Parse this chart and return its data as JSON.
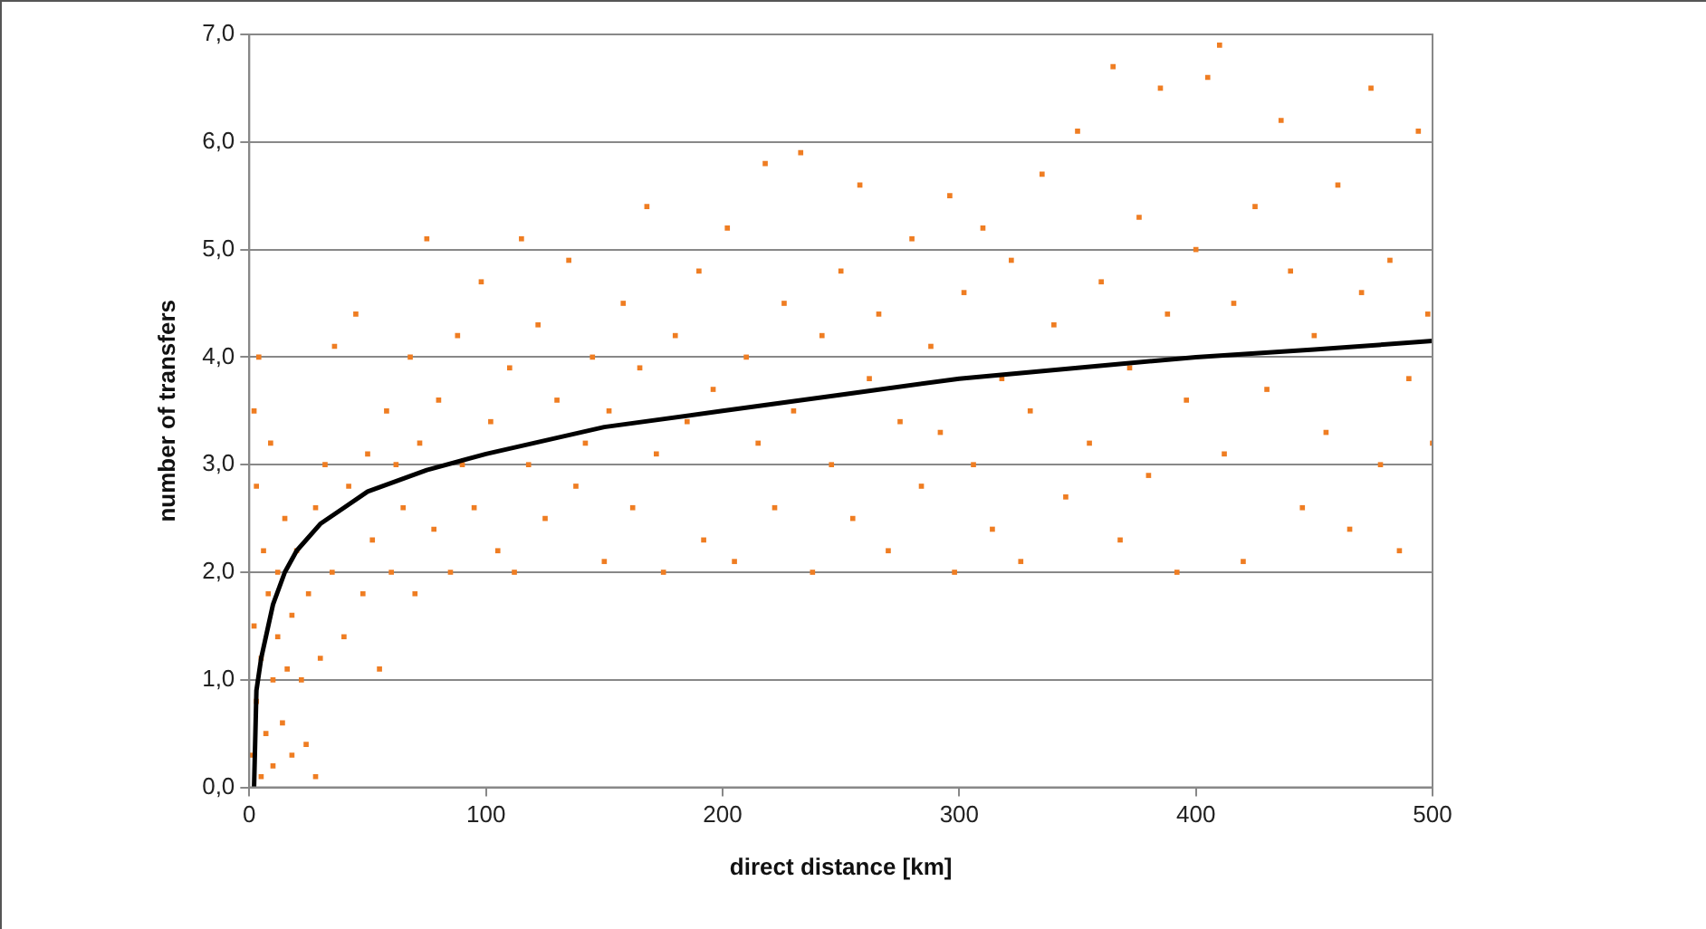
{
  "chart_data": {
    "type": "scatter",
    "xlabel": "direct distance [km]",
    "ylabel": "number of transfers",
    "xlim": [
      0,
      500
    ],
    "xticks": [
      0,
      100,
      200,
      300,
      400,
      500
    ],
    "ylim": [
      0,
      7
    ],
    "yticks": [
      {
        "value": 0,
        "label": "0,0"
      },
      {
        "value": 1,
        "label": "1,0"
      },
      {
        "value": 2,
        "label": "2,0"
      },
      {
        "value": 3,
        "label": "3,0"
      },
      {
        "value": 4,
        "label": "4,0"
      },
      {
        "value": 5,
        "label": "5,0"
      },
      {
        "value": 6,
        "label": "6,0"
      },
      {
        "value": 7,
        "label": "7,0"
      }
    ],
    "grid": "y",
    "marker": "square",
    "series": [
      {
        "type": "scatter",
        "color": "#ef7d22",
        "x": [
          1,
          2,
          2,
          3,
          3,
          4,
          5,
          5,
          6,
          7,
          8,
          9,
          10,
          10,
          12,
          12,
          14,
          15,
          16,
          18,
          18,
          20,
          22,
          24,
          25,
          28,
          28,
          30,
          32,
          35,
          36,
          40,
          42,
          45,
          48,
          50,
          52,
          55,
          58,
          60,
          62,
          65,
          68,
          70,
          72,
          75,
          78,
          80,
          85,
          88,
          90,
          95,
          98,
          102,
          105,
          110,
          112,
          115,
          118,
          122,
          125,
          130,
          135,
          138,
          142,
          145,
          150,
          152,
          158,
          162,
          165,
          168,
          172,
          175,
          180,
          185,
          190,
          192,
          196,
          202,
          205,
          210,
          215,
          218,
          222,
          226,
          230,
          233,
          238,
          242,
          246,
          250,
          255,
          258,
          262,
          266,
          270,
          275,
          280,
          284,
          288,
          292,
          296,
          298,
          302,
          306,
          310,
          314,
          318,
          322,
          326,
          330,
          335,
          340,
          345,
          350,
          355,
          360,
          365,
          368,
          372,
          376,
          380,
          385,
          388,
          392,
          396,
          400,
          405,
          410,
          412,
          416,
          420,
          425,
          430,
          436,
          440,
          445,
          450,
          455,
          460,
          465,
          470,
          474,
          478,
          482,
          486,
          490,
          494,
          498,
          500
        ],
        "values": [
          0.3,
          1.5,
          3.5,
          0.8,
          2.8,
          4.0,
          0.1,
          1.2,
          2.2,
          0.5,
          1.8,
          3.2,
          0.2,
          1.0,
          2.0,
          1.4,
          0.6,
          2.5,
          1.1,
          0.3,
          1.6,
          2.2,
          1.0,
          0.4,
          1.8,
          0.1,
          2.6,
          1.2,
          3.0,
          2.0,
          4.1,
          1.4,
          2.8,
          4.4,
          1.8,
          3.1,
          2.3,
          1.1,
          3.5,
          2.0,
          3.0,
          2.6,
          4.0,
          1.8,
          3.2,
          5.1,
          2.4,
          3.6,
          2.0,
          4.2,
          3.0,
          2.6,
          4.7,
          3.4,
          2.2,
          3.9,
          2.0,
          5.1,
          3.0,
          4.3,
          2.5,
          3.6,
          4.9,
          2.8,
          3.2,
          4.0,
          2.1,
          3.5,
          4.5,
          2.6,
          3.9,
          5.4,
          3.1,
          2.0,
          4.2,
          3.4,
          4.8,
          2.3,
          3.7,
          5.2,
          2.1,
          4.0,
          3.2,
          5.8,
          2.6,
          4.5,
          3.5,
          5.9,
          2.0,
          4.2,
          3.0,
          4.8,
          2.5,
          5.6,
          3.8,
          4.4,
          2.2,
          3.4,
          5.1,
          2.8,
          4.1,
          3.3,
          5.5,
          2.0,
          4.6,
          3.0,
          5.2,
          2.4,
          3.8,
          4.9,
          2.1,
          3.5,
          5.7,
          4.3,
          2.7,
          6.1,
          3.2,
          4.7,
          6.7,
          2.3,
          3.9,
          5.3,
          2.9,
          6.5,
          4.4,
          2.0,
          3.6,
          5.0,
          6.6,
          6.9,
          3.1,
          4.5,
          2.1,
          5.4,
          3.7,
          6.2,
          4.8,
          2.6,
          4.2,
          3.3,
          5.6,
          2.4,
          4.6,
          6.5,
          3.0,
          4.9,
          2.2,
          3.8,
          6.1,
          4.4,
          3.2
        ]
      },
      {
        "type": "line",
        "color": "#000000",
        "marker": "none",
        "x": [
          2,
          3,
          5,
          8,
          10,
          15,
          20,
          30,
          40,
          50,
          75,
          100,
          150,
          200,
          250,
          300,
          350,
          400,
          450,
          500
        ],
        "values": [
          0,
          0.9,
          1.2,
          1.5,
          1.7,
          2.0,
          2.2,
          2.45,
          2.6,
          2.75,
          2.95,
          3.1,
          3.35,
          3.5,
          3.65,
          3.8,
          3.9,
          4.0,
          4.07,
          4.15
        ]
      }
    ]
  }
}
